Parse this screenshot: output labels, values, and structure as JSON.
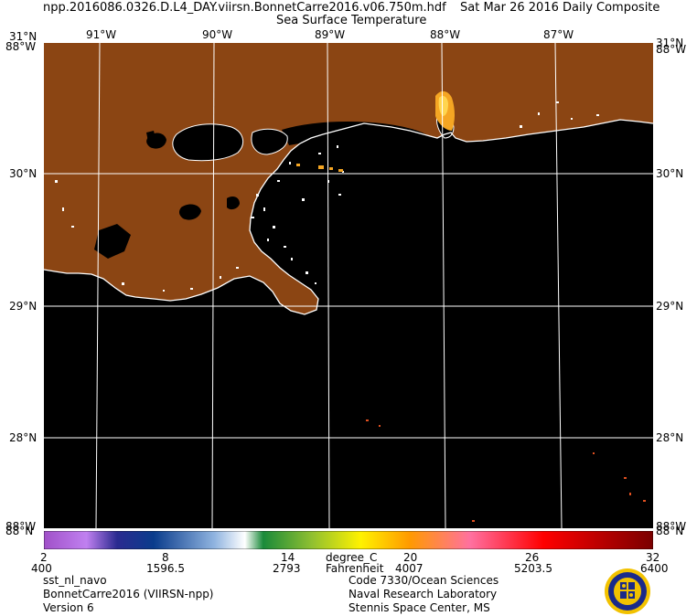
{
  "header": {
    "filename": "npp.2016086.0326.D.L4_DAY.viirsn.BonnetCarre2016.v06.750m.hdf",
    "date": "Sat Mar 26 2016 Daily Composite",
    "product": "Sea Surface Temperature"
  },
  "map": {
    "lon_labels": [
      "91°W",
      "90°W",
      "89°W",
      "88°W",
      "87°W"
    ],
    "lat_labels": [
      "30°N",
      "29°N",
      "28°N"
    ],
    "top_left_corner": "31°N",
    "top_left_corner_stack": "88°W",
    "top_right_corner": "31°N",
    "top_right_corner_stack": "88°W",
    "bottom_left_corner": "88°W",
    "bottom_left_corner_stack": "88°N",
    "bottom_right_corner": "88°W",
    "bottom_right_corner_stack": "88°N",
    "colors": {
      "land": "#8b4513",
      "ocean_nodata": "#000000",
      "coast": "#ffffff",
      "grid": "#ffffff",
      "warm_patch": "#f5a623",
      "warm_patch_light": "#ffd54f"
    }
  },
  "colorbar": {
    "celsius_ticks": [
      "2",
      "8",
      "14",
      "20",
      "26",
      "32"
    ],
    "unit_label": "degree_C",
    "fahrenheit_label": "Fahrenheit",
    "scaled_ticks": [
      "400",
      "1596.5",
      "2793",
      "4007",
      "5203.5",
      "6400"
    ]
  },
  "footer": {
    "left": [
      "sst_nl_navo",
      "BonnetCarre2016 (VIIRSN-npp)",
      "Version 6"
    ],
    "right": [
      "Code 7330/Ocean Sciences",
      "Naval Research Laboratory",
      "Stennis Space Center, MS"
    ]
  }
}
